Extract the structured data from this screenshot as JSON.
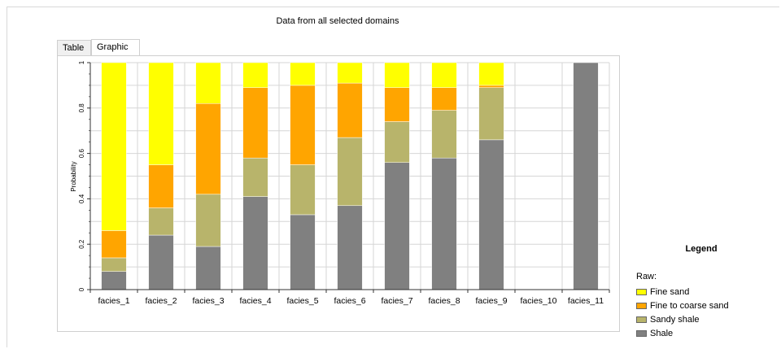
{
  "panel": {
    "title": "Data from all selected domains"
  },
  "tabs": [
    {
      "label": "Table",
      "active": false
    },
    {
      "label": "Graphic",
      "active": true
    }
  ],
  "colors": {
    "fine_sand": "#ffff00",
    "fine_to_coarse_sand": "#ffa500",
    "sandy_shale": "#b8b46b",
    "shale": "#808080"
  },
  "legend": {
    "title": "Legend",
    "group_label": "Raw:",
    "items": [
      {
        "label": "Fine sand",
        "color_key": "fine_sand"
      },
      {
        "label": "Fine to coarse sand",
        "color_key": "fine_to_coarse_sand"
      },
      {
        "label": "Sandy shale",
        "color_key": "sandy_shale"
      },
      {
        "label": "Shale",
        "color_key": "shale"
      }
    ]
  },
  "chart_data": {
    "type": "bar",
    "stacked": true,
    "ylabel": "Probability",
    "xlabel": "",
    "ylim": [
      0,
      1
    ],
    "yticks": [
      "0",
      "0.2",
      "0.4",
      "0.6",
      "0.8",
      "1"
    ],
    "grid": true,
    "legend_position": "right",
    "categories": [
      "facies_1",
      "facies_2",
      "facies_3",
      "facies_4",
      "facies_5",
      "facies_6",
      "facies_7",
      "facies_8",
      "facies_9",
      "facies_10",
      "facies_11"
    ],
    "series": [
      {
        "name": "Shale",
        "color_key": "shale",
        "values": [
          0.08,
          0.24,
          0.19,
          0.41,
          0.33,
          0.37,
          0.56,
          0.58,
          0.66,
          0,
          1.0
        ]
      },
      {
        "name": "Sandy shale",
        "color_key": "sandy_shale",
        "values": [
          0.06,
          0.12,
          0.23,
          0.17,
          0.22,
          0.3,
          0.18,
          0.21,
          0.23,
          0,
          0
        ]
      },
      {
        "name": "Fine to coarse sand",
        "color_key": "fine_to_coarse_sand",
        "values": [
          0.12,
          0.19,
          0.4,
          0.31,
          0.35,
          0.24,
          0.15,
          0.1,
          0.01,
          0,
          0
        ]
      },
      {
        "name": "Fine sand",
        "color_key": "fine_sand",
        "values": [
          0.74,
          0.45,
          0.18,
          0.11,
          0.1,
          0.09,
          0.11,
          0.11,
          0.1,
          0,
          0
        ]
      }
    ]
  }
}
